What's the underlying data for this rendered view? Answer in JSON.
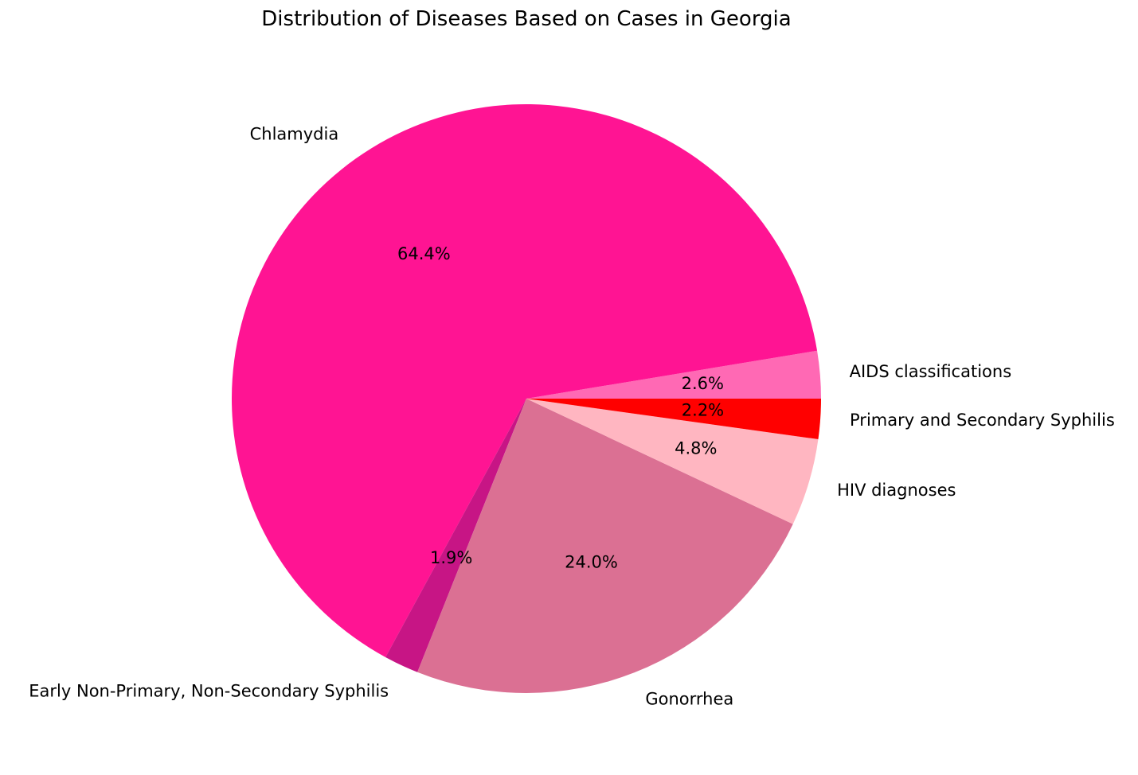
{
  "chart_data": {
    "type": "pie",
    "title": "Distribution of Diseases Based on Cases in Georgia",
    "start_angle_deg": 0,
    "direction": "counterclockwise",
    "slices": [
      {
        "label": "AIDS classifications",
        "percent": 2.6,
        "pct_text": "2.6%",
        "color": "#FF69B4"
      },
      {
        "label": "Chlamydia",
        "percent": 64.4,
        "pct_text": "64.4%",
        "color": "#FF1493"
      },
      {
        "label": "Early Non-Primary, Non-Secondary Syphilis",
        "percent": 1.9,
        "pct_text": "1.9%",
        "color": "#C71585"
      },
      {
        "label": "Gonorrhea",
        "percent": 24.0,
        "pct_text": "24.0%",
        "color": "#DB7093"
      },
      {
        "label": "HIV diagnoses",
        "percent": 4.8,
        "pct_text": "4.8%",
        "color": "#FFB6C1"
      },
      {
        "label": "Primary and Secondary Syphilis",
        "percent": 2.2,
        "pct_text": "2.2%",
        "color": "#FF0000"
      }
    ]
  }
}
